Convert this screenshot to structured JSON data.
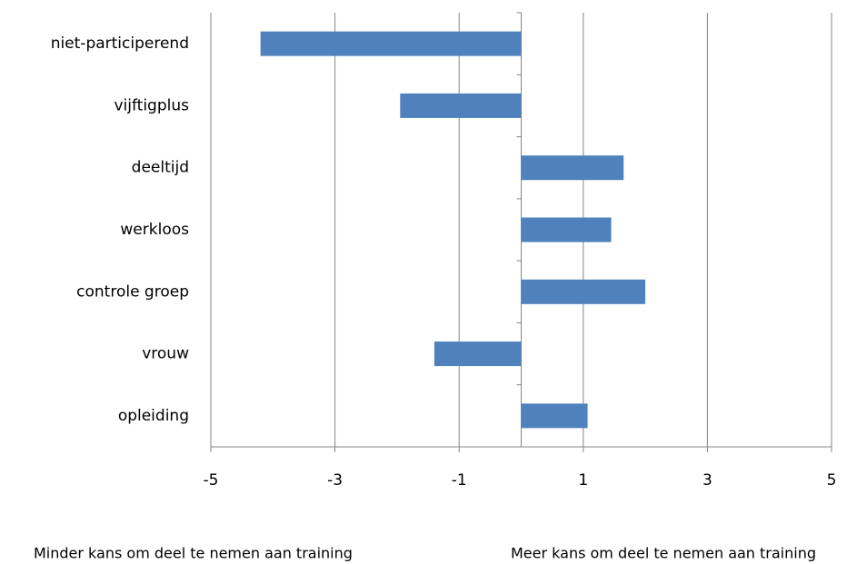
{
  "chart_data": {
    "type": "barh",
    "categories": [
      "niet-participerend",
      "vijftigplus",
      "deeltijd",
      "werkloos",
      "controle groep",
      "vrouw",
      "opleiding"
    ],
    "values": [
      -4.2,
      -1.95,
      1.65,
      1.45,
      2.0,
      -1.4,
      1.07
    ],
    "color": "#4f81bd",
    "xlim": [
      -5,
      5
    ],
    "xticks": [
      -5,
      -3,
      -1,
      1,
      3,
      5
    ],
    "grid": true,
    "annotations": [
      "Minder kans om deel te nemen aan training",
      "Meer kans om deel te nemen aan training"
    ]
  }
}
